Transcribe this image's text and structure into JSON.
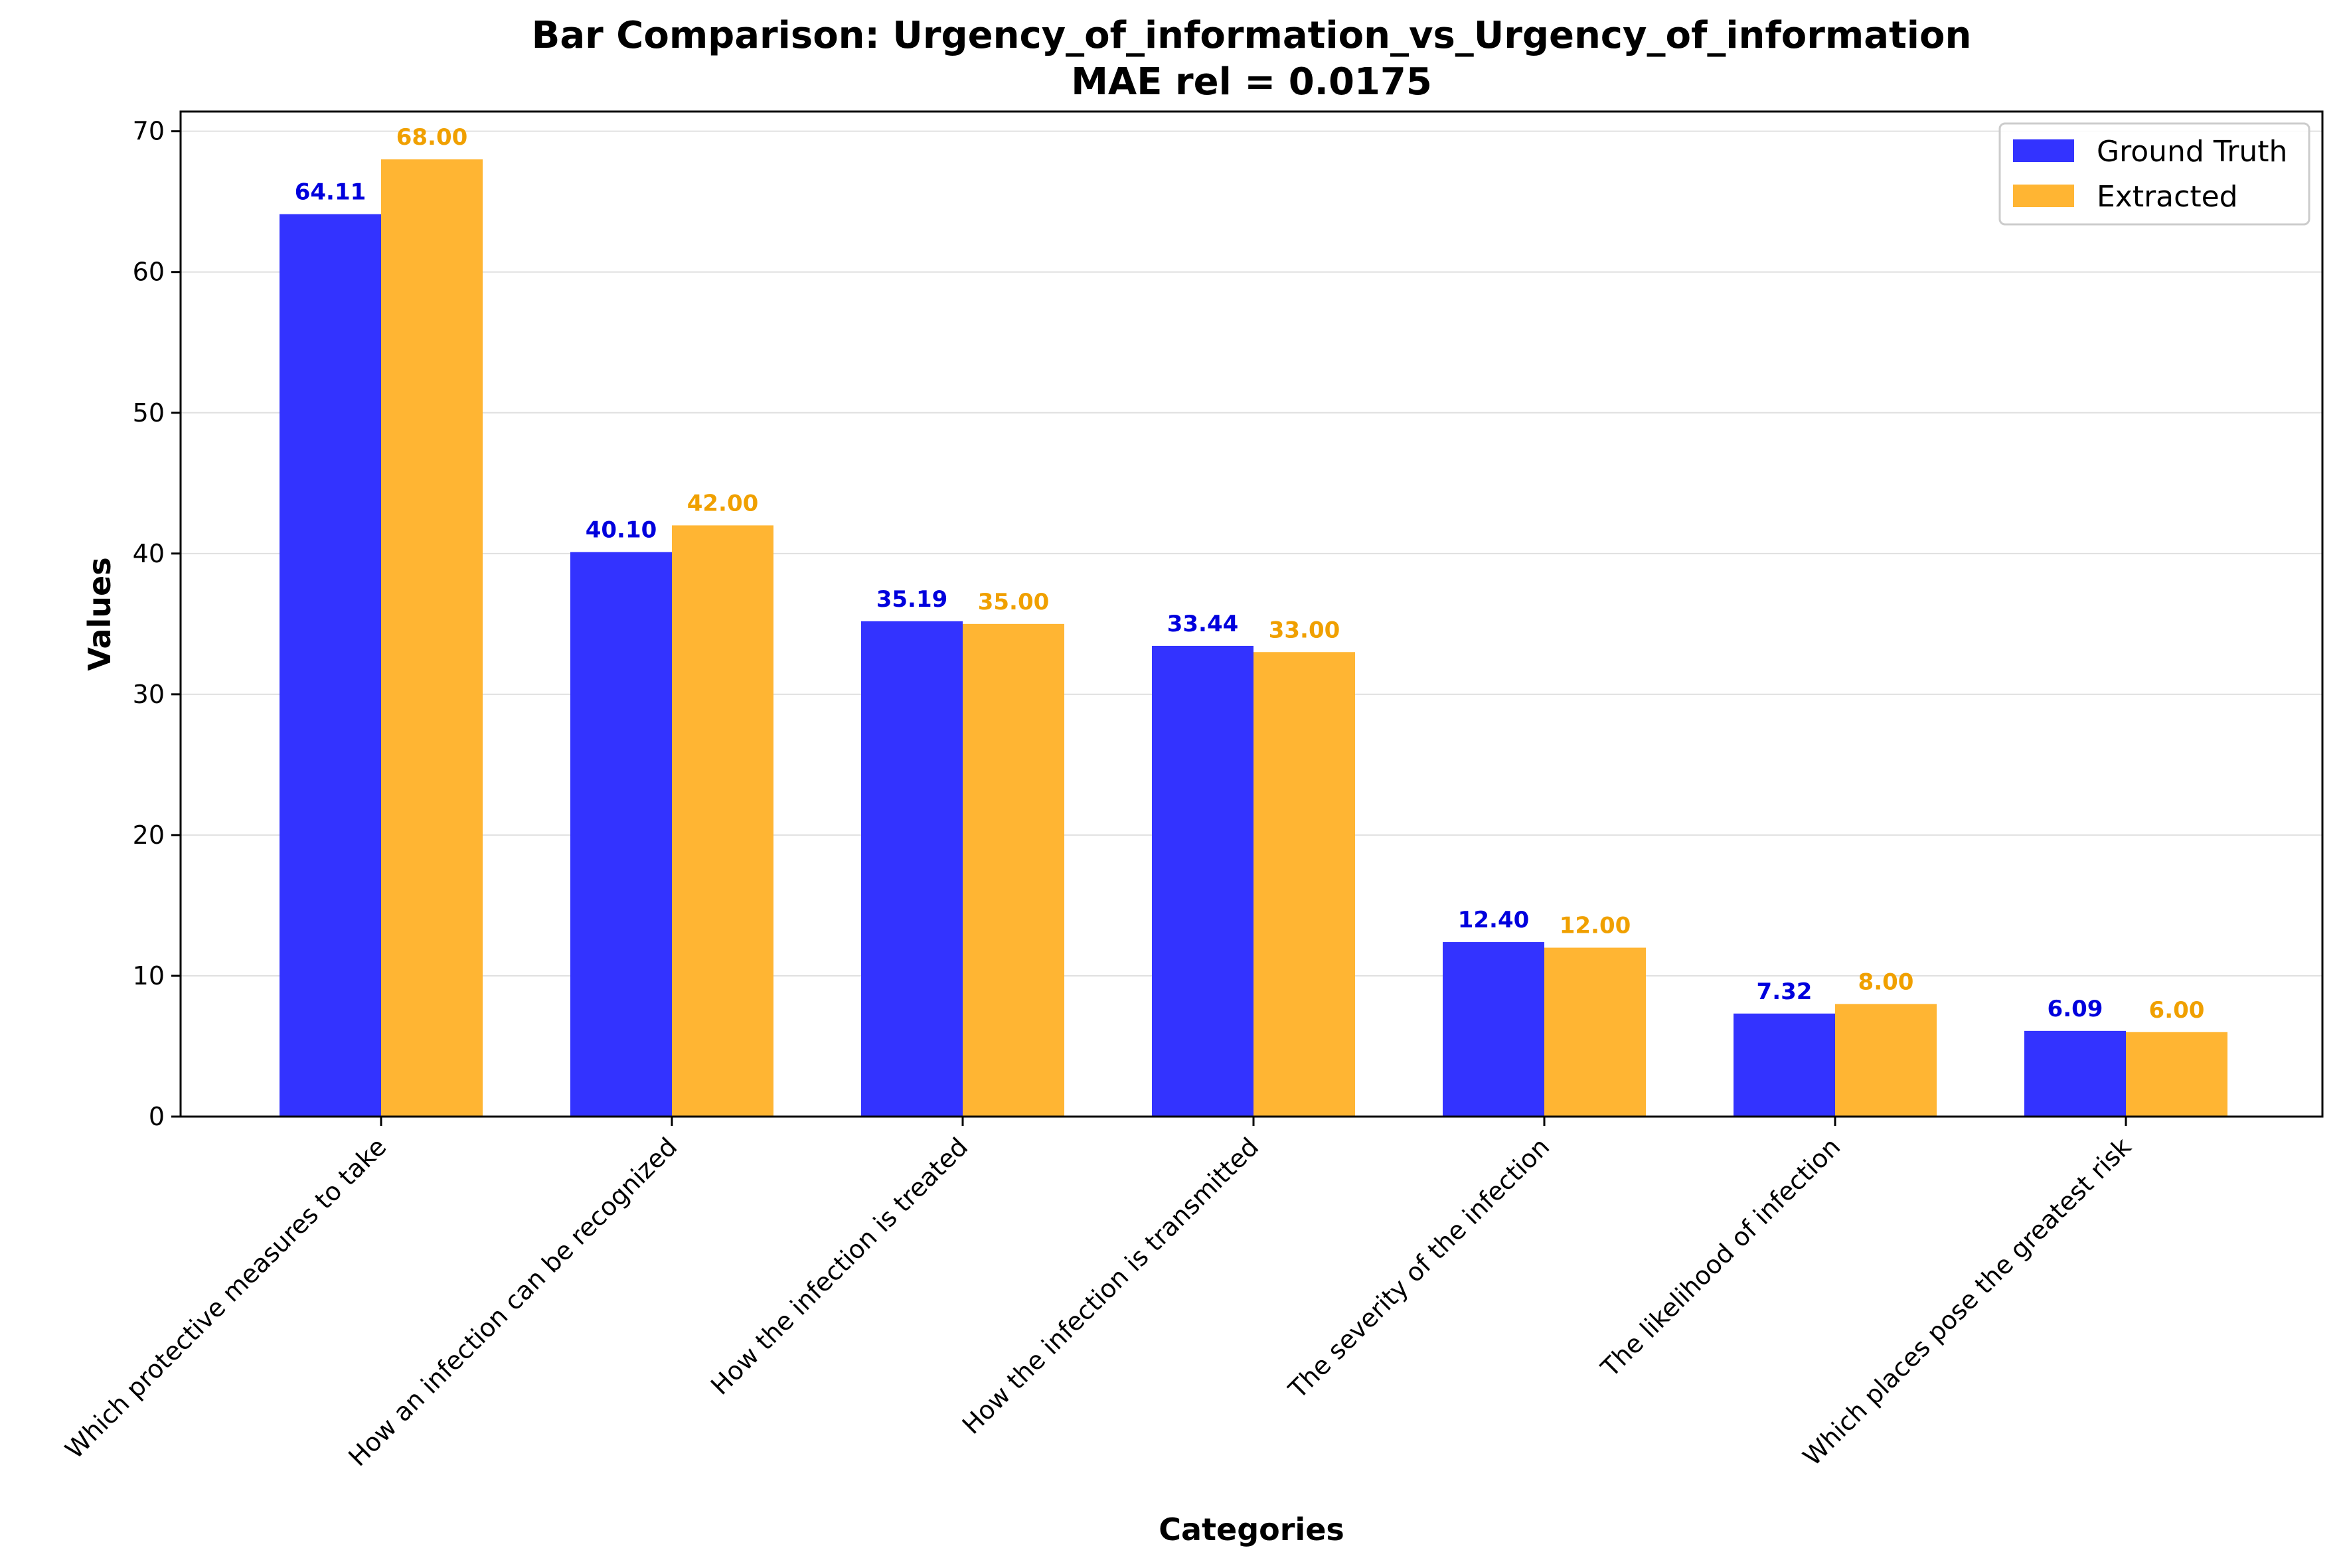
{
  "chart_data": {
    "type": "bar",
    "title": "Bar Comparison: Urgency_of_information_vs_Urgency_of_information",
    "subtitle": "MAE rel = 0.0175",
    "xlabel": "Categories",
    "ylabel": "Values",
    "ylim": [
      0,
      71.4
    ],
    "yticks": [
      0,
      10,
      20,
      30,
      40,
      50,
      60,
      70
    ],
    "grid": "horizontal",
    "legend_position": "top-right",
    "categories": [
      "Which protective measures to take",
      "How an infection can be recognized",
      "How the infection is treated",
      "How the infection is transmitted",
      "The severity of the infection",
      "The likelihood of infection",
      "Which places pose the greatest risk"
    ],
    "series": [
      {
        "name": "Ground Truth",
        "color": "#3333ff",
        "label_color": "#0000dd",
        "values": [
          64.11,
          40.1,
          35.19,
          33.44,
          12.4,
          7.32,
          6.09
        ],
        "labels": [
          "64.11",
          "40.10",
          "35.19",
          "33.44",
          "12.40",
          "7.32",
          "6.09"
        ]
      },
      {
        "name": "Extracted",
        "color": "#ffb533",
        "label_color": "#f0a000",
        "values": [
          68.0,
          42.0,
          35.0,
          33.0,
          12.0,
          8.0,
          6.0
        ],
        "labels": [
          "68.00",
          "42.00",
          "35.00",
          "33.00",
          "12.00",
          "8.00",
          "6.00"
        ]
      }
    ]
  }
}
